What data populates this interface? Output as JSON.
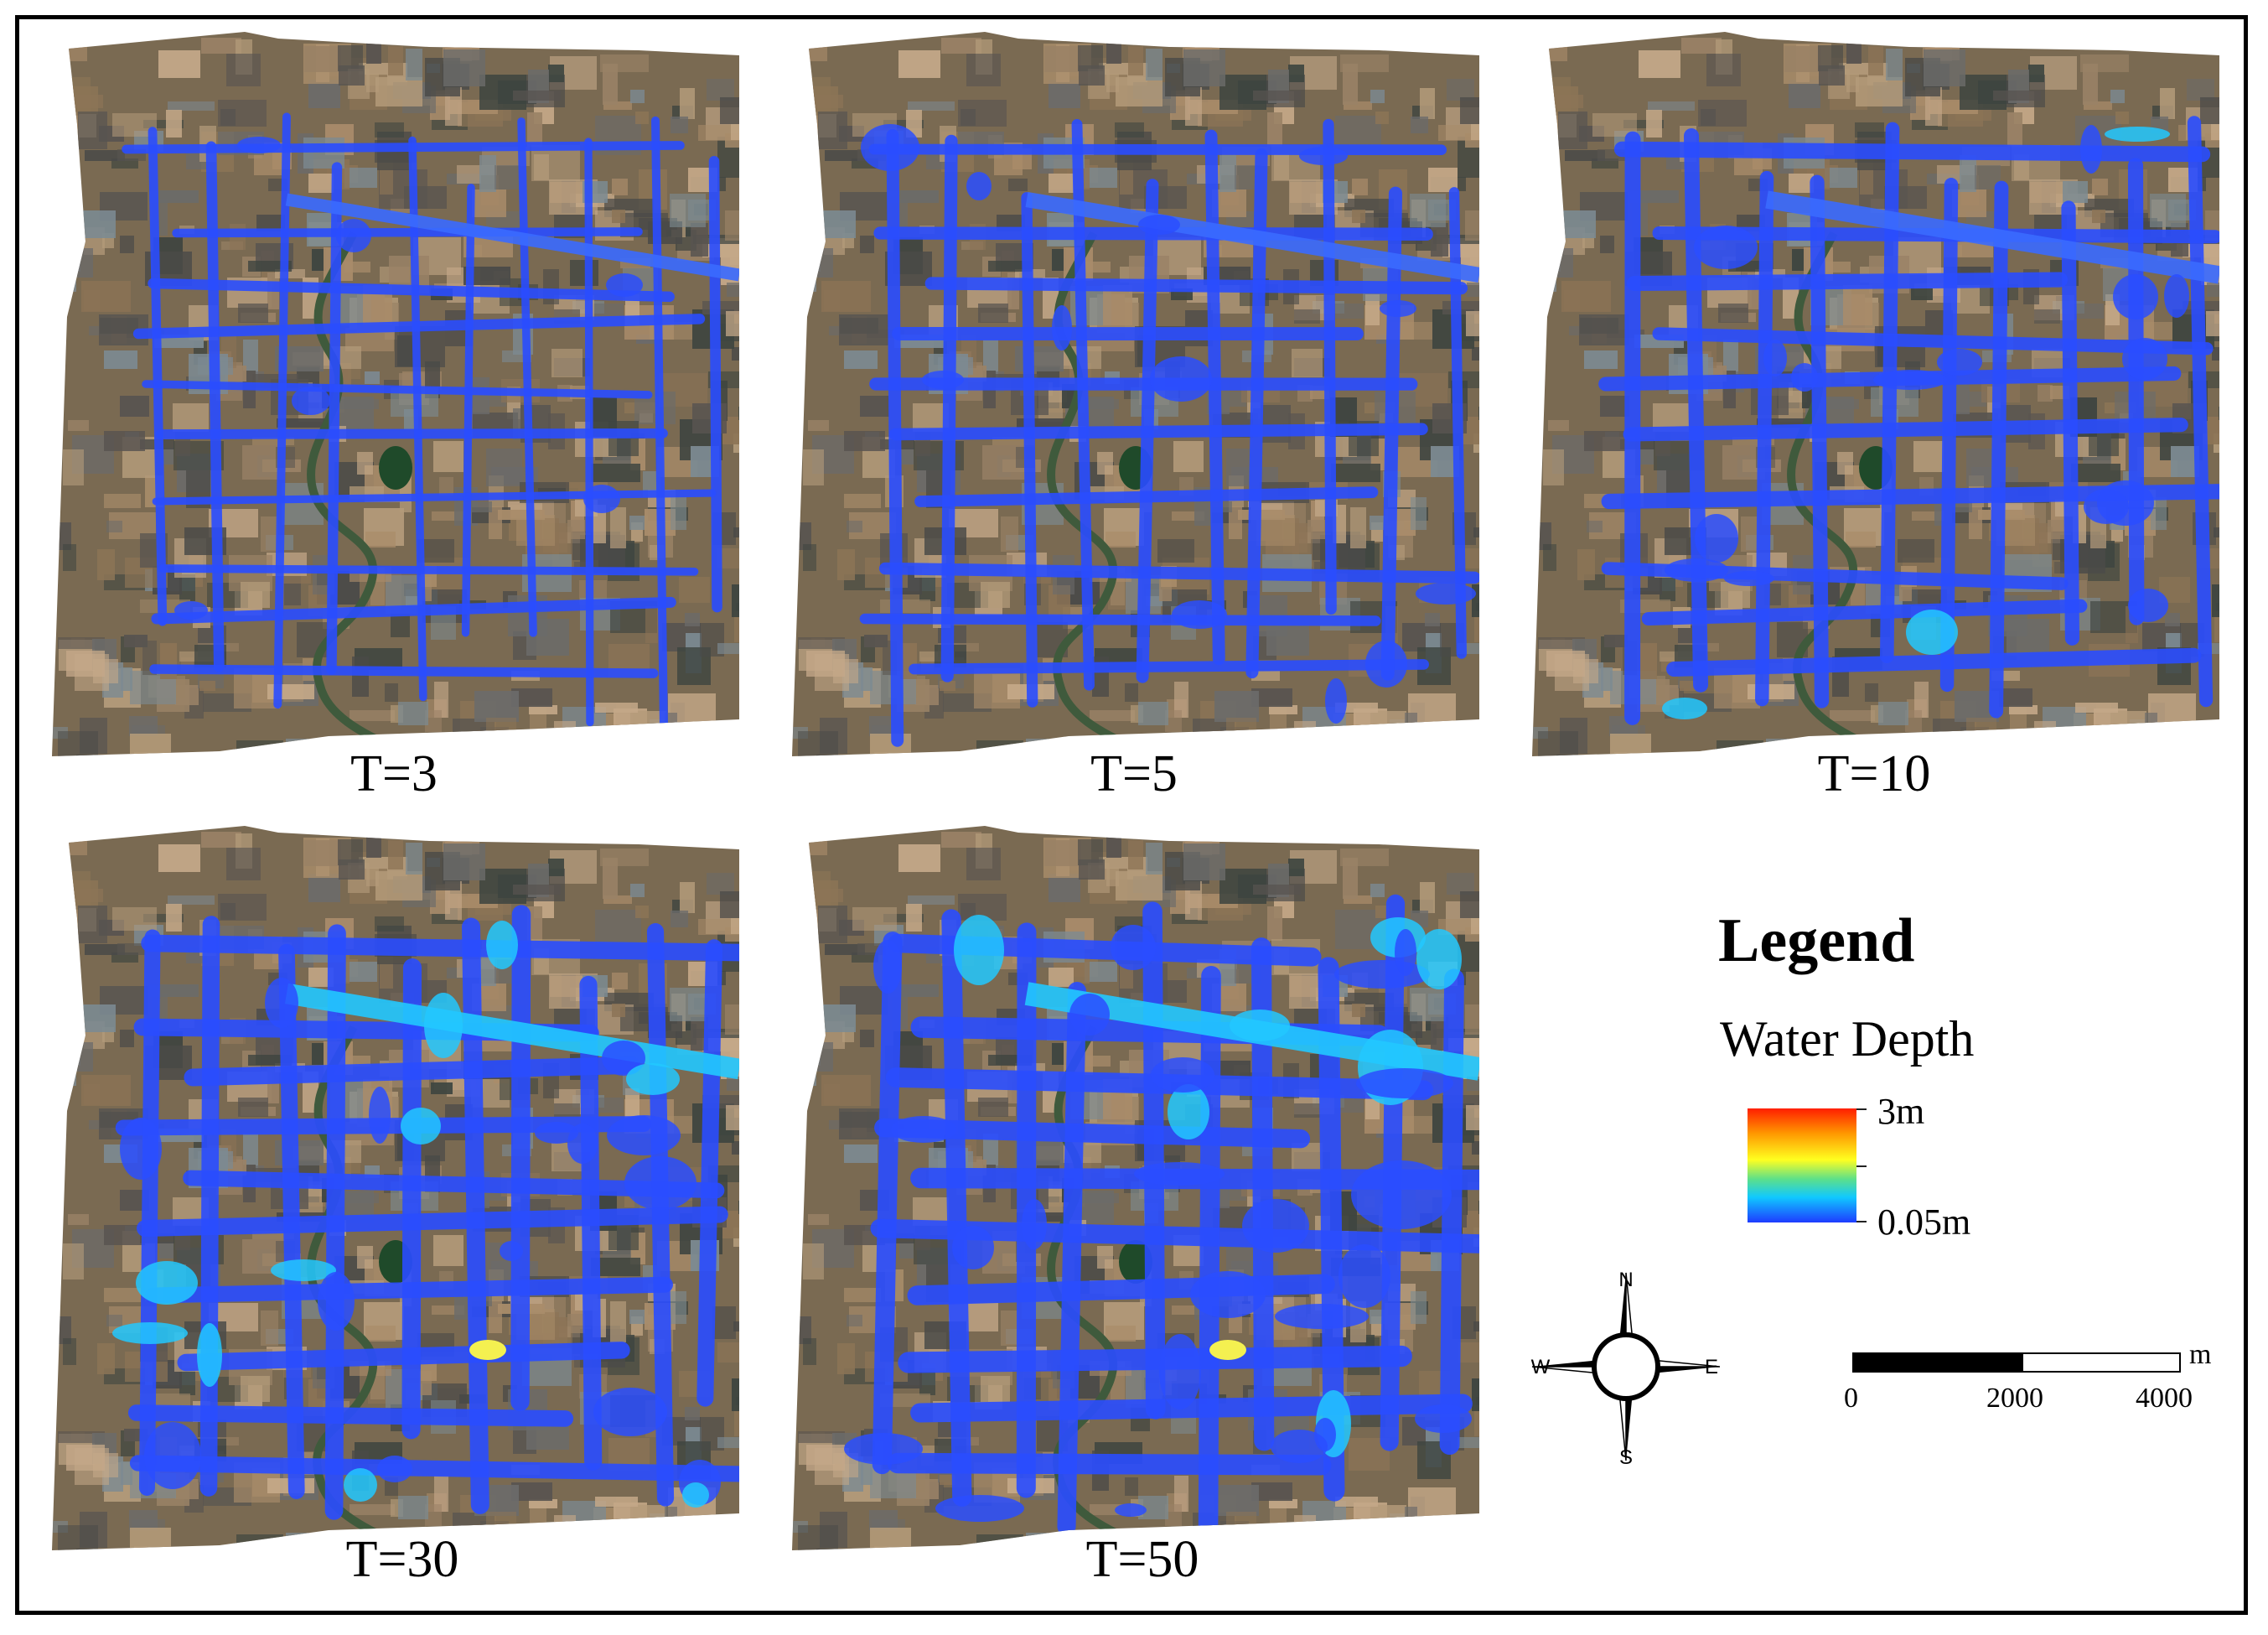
{
  "panels": [
    {
      "label": "T=3",
      "flood_level": 0
    },
    {
      "label": "T=5",
      "flood_level": 1
    },
    {
      "label": "T=10",
      "flood_level": 2
    },
    {
      "label": "T=30",
      "flood_level": 3
    },
    {
      "label": "T=50",
      "flood_level": 4
    }
  ],
  "legend": {
    "title": "Legend",
    "subtitle": "Water Depth",
    "max_label": "3m",
    "min_label": "0.05m",
    "colors": [
      "#ff1e00",
      "#ff9800",
      "#ffff20",
      "#5ce08a",
      "#10c8ff",
      "#1e3cff"
    ]
  },
  "compass": {
    "n": "N",
    "s": "S",
    "e": "E",
    "w": "W"
  },
  "scale": {
    "unit": "m",
    "ticks": [
      "0",
      "2000",
      "4000"
    ]
  },
  "colors": {
    "water": "#2a4dff",
    "water_deep": "#22c8ff",
    "satellite_base": "#7a6a52"
  }
}
